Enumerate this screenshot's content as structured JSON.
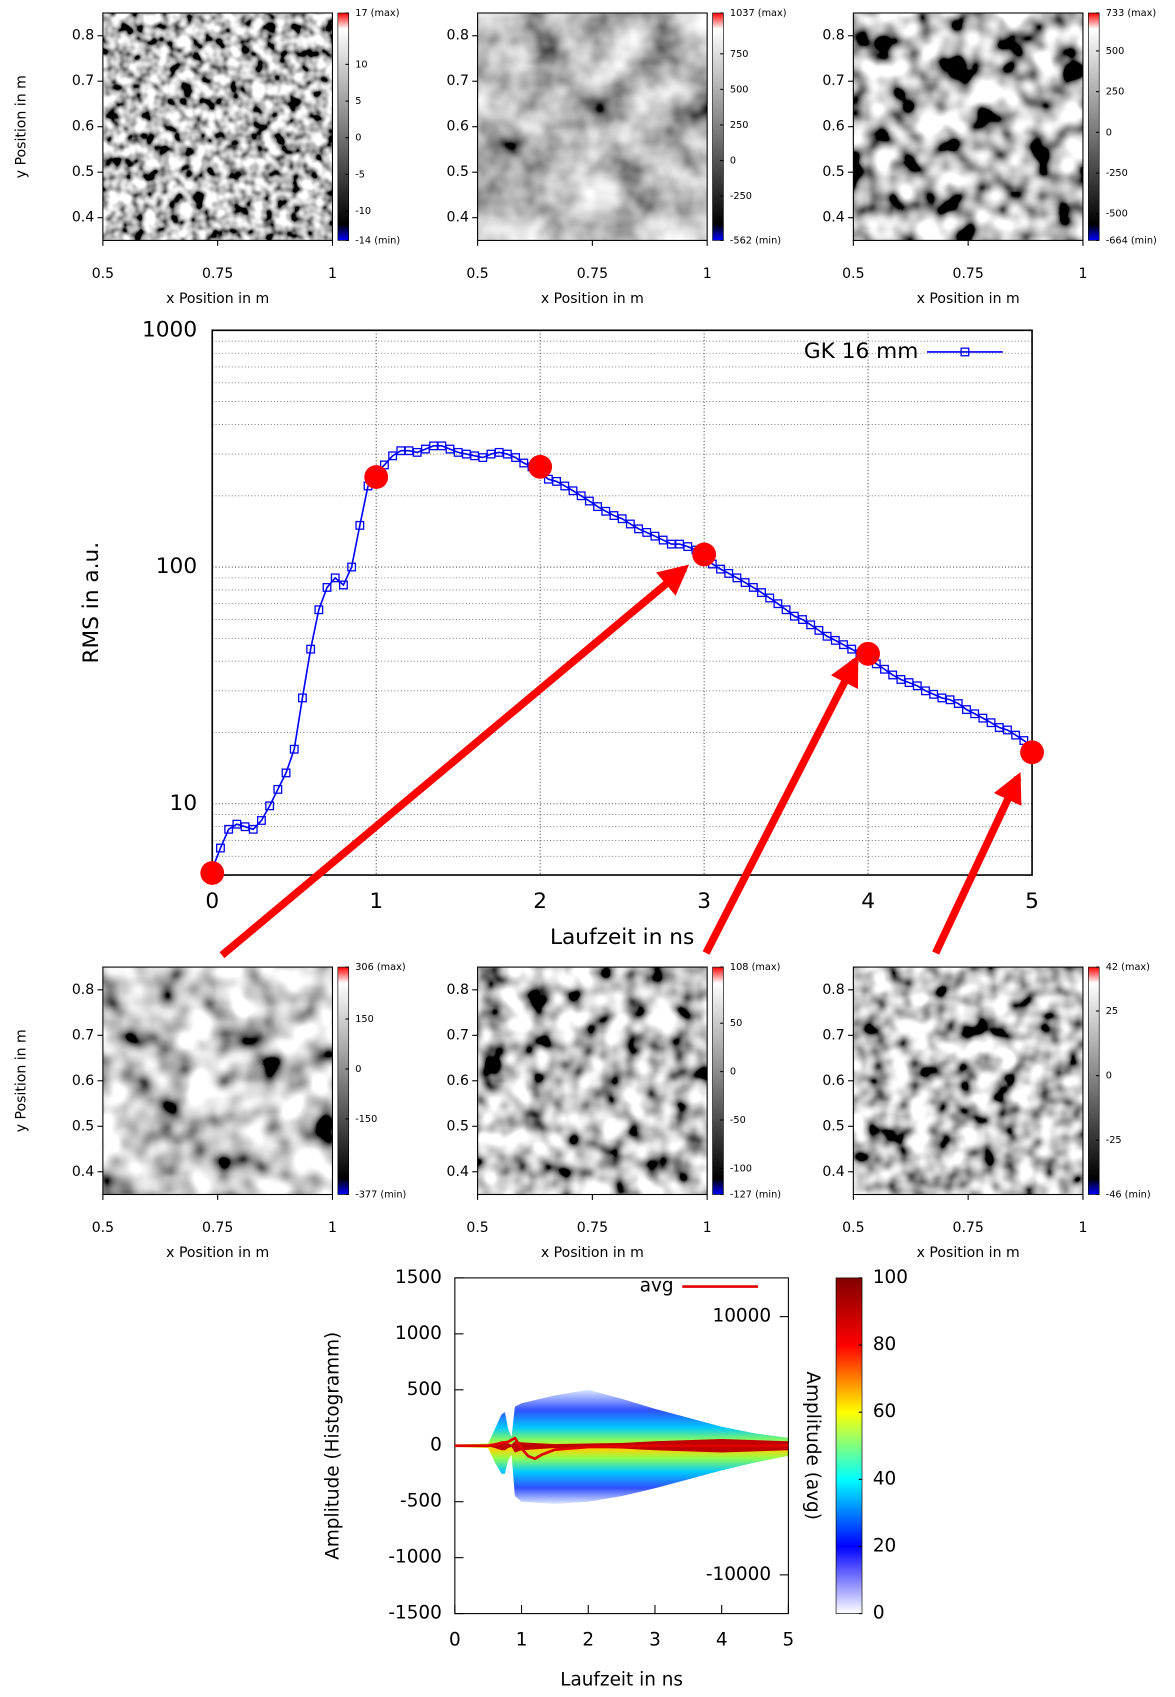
{
  "chart_data": [
    {
      "type": "heatmap",
      "xlabel": "x Position in m",
      "ylabel": "y Position in m",
      "xlim": [
        0.5,
        1
      ],
      "ylim": [
        0.35,
        0.85
      ],
      "xticks": [
        0.5,
        0.75,
        1
      ],
      "yticks": [
        0.4,
        0.5,
        0.6,
        0.7,
        0.8
      ],
      "colormap": [
        "#0000ff",
        "#000000",
        "#ffffff",
        "#ff0000"
      ],
      "zlim": [
        -14,
        17
      ],
      "zticks": [
        {
          "value": -14,
          "label": "-14 (min)"
        },
        -10,
        -5,
        0,
        5,
        10,
        {
          "value": 17,
          "label": "17 (max)"
        }
      ]
    },
    {
      "type": "heatmap",
      "xlabel": "x Position in m",
      "xlim": [
        0.5,
        1
      ],
      "ylim": [
        0.35,
        0.85
      ],
      "xticks": [
        0.5,
        0.75,
        1
      ],
      "yticks": [
        0.4,
        0.5,
        0.6,
        0.7,
        0.8
      ],
      "colormap": [
        "#0000ff",
        "#000000",
        "#ffffff",
        "#ff0000"
      ],
      "zlim": [
        -562,
        1037
      ],
      "zticks": [
        {
          "value": -562,
          "label": "-562 (min)"
        },
        -250,
        0,
        250,
        500,
        750,
        {
          "value": 1037,
          "label": "1037 (max)"
        }
      ]
    },
    {
      "type": "heatmap",
      "xlabel": "x Position in m",
      "xlim": [
        0.5,
        1
      ],
      "ylim": [
        0.35,
        0.85
      ],
      "xticks": [
        0.5,
        0.75,
        1
      ],
      "yticks": [
        0.4,
        0.5,
        0.6,
        0.7,
        0.8
      ],
      "colormap": [
        "#0000ff",
        "#000000",
        "#ffffff",
        "#ff0000"
      ],
      "zlim": [
        -664,
        733
      ],
      "zticks": [
        {
          "value": -664,
          "label": "-664 (min)"
        },
        -500,
        -250,
        0,
        250,
        500,
        {
          "value": 733,
          "label": "733 (max)"
        }
      ]
    },
    {
      "type": "line",
      "xlabel": "Laufzeit in ns",
      "ylabel": "RMS in a.u.",
      "xlim": [
        0,
        5
      ],
      "ylim": [
        5,
        1000
      ],
      "log_y": true,
      "grid": true,
      "legend": "top-right",
      "xticks": [
        0,
        1,
        2,
        3,
        4,
        5
      ],
      "yticks": [
        10,
        100,
        1000
      ],
      "yminorticks": [
        6,
        7,
        8,
        9,
        20,
        30,
        40,
        50,
        60,
        70,
        80,
        90,
        200,
        300,
        400,
        500,
        600,
        700,
        800,
        900
      ],
      "x": [
        0,
        0.05,
        0.1,
        0.15,
        0.2,
        0.25,
        0.3,
        0.35,
        0.4,
        0.45,
        0.5,
        0.55,
        0.6,
        0.65,
        0.7,
        0.75,
        0.8,
        0.85,
        0.9,
        0.95,
        1.0,
        1.05,
        1.1,
        1.15,
        1.2,
        1.25,
        1.3,
        1.35,
        1.4,
        1.45,
        1.5,
        1.55,
        1.6,
        1.65,
        1.7,
        1.75,
        1.8,
        1.85,
        1.9,
        1.95,
        2.0,
        2.05,
        2.1,
        2.15,
        2.2,
        2.25,
        2.3,
        2.35,
        2.4,
        2.45,
        2.5,
        2.55,
        2.6,
        2.65,
        2.7,
        2.75,
        2.8,
        2.85,
        2.9,
        2.95,
        3.0,
        3.05,
        3.1,
        3.15,
        3.2,
        3.25,
        3.3,
        3.35,
        3.4,
        3.45,
        3.5,
        3.55,
        3.6,
        3.65,
        3.7,
        3.75,
        3.8,
        3.85,
        3.9,
        3.95,
        4.0,
        4.05,
        4.1,
        4.15,
        4.2,
        4.25,
        4.3,
        4.35,
        4.4,
        4.45,
        4.5,
        4.55,
        4.6,
        4.65,
        4.7,
        4.75,
        4.8,
        4.85,
        4.9,
        4.95,
        5.0
      ],
      "series": [
        {
          "name": "GK 16 mm",
          "color": "#0000ff",
          "values": [
            5.3,
            6.5,
            7.8,
            8.2,
            8.0,
            7.8,
            8.5,
            9.8,
            11.5,
            13.5,
            17,
            28,
            45,
            66,
            82,
            90,
            84,
            100,
            150,
            220,
            250,
            270,
            295,
            310,
            310,
            305,
            315,
            325,
            325,
            315,
            305,
            300,
            295,
            290,
            300,
            305,
            300,
            290,
            275,
            265,
            250,
            235,
            230,
            220,
            210,
            200,
            190,
            180,
            172,
            165,
            160,
            152,
            145,
            140,
            135,
            130,
            125,
            125,
            122,
            118,
            110,
            103,
            98,
            94,
            90,
            86,
            82,
            78,
            74,
            70,
            66,
            62,
            60,
            57,
            54,
            51,
            49,
            47,
            45,
            43,
            41,
            39,
            37,
            35,
            33.5,
            32.5,
            31.5,
            30,
            29,
            28,
            27.5,
            26.5,
            25,
            24,
            23,
            22,
            21,
            20.5,
            19.5,
            18.5,
            17.5
          ]
        }
      ],
      "highlights": {
        "color": "#ff0000",
        "x": [
          0,
          1,
          2,
          3,
          4,
          5
        ],
        "values": [
          5.1,
          240,
          265,
          113,
          43,
          16.5
        ]
      }
    },
    {
      "type": "heatmap",
      "xlabel": "x Position in m",
      "ylabel": "y Position in m",
      "xlim": [
        0.5,
        1
      ],
      "ylim": [
        0.35,
        0.85
      ],
      "xticks": [
        0.5,
        0.75,
        1
      ],
      "yticks": [
        0.4,
        0.5,
        0.6,
        0.7,
        0.8
      ],
      "colormap": [
        "#0000ff",
        "#000000",
        "#ffffff",
        "#ff0000"
      ],
      "zlim": [
        -377,
        306
      ],
      "zticks": [
        {
          "value": -377,
          "label": "-377 (min)"
        },
        -150,
        0,
        150,
        {
          "value": 306,
          "label": "306 (max)"
        }
      ]
    },
    {
      "type": "heatmap",
      "xlabel": "x Position in m",
      "xlim": [
        0.5,
        1
      ],
      "ylim": [
        0.35,
        0.85
      ],
      "xticks": [
        0.5,
        0.75,
        1
      ],
      "yticks": [
        0.4,
        0.5,
        0.6,
        0.7,
        0.8
      ],
      "colormap": [
        "#0000ff",
        "#000000",
        "#ffffff",
        "#ff0000"
      ],
      "zlim": [
        -127,
        108
      ],
      "zticks": [
        {
          "value": -127,
          "label": "-127 (min)"
        },
        -100,
        -50,
        0,
        50,
        {
          "value": 108,
          "label": "108 (max)"
        }
      ]
    },
    {
      "type": "heatmap",
      "xlabel": "x Position in m",
      "xlim": [
        0.5,
        1
      ],
      "ylim": [
        0.35,
        0.85
      ],
      "xticks": [
        0.5,
        0.75,
        1
      ],
      "yticks": [
        0.4,
        0.5,
        0.6,
        0.7,
        0.8
      ],
      "colormap": [
        "#0000ff",
        "#000000",
        "#ffffff",
        "#ff0000"
      ],
      "zlim": [
        -46,
        42
      ],
      "zticks": [
        {
          "value": -46,
          "label": "-46 (min)"
        },
        -25,
        0,
        25,
        {
          "value": 42,
          "label": "42 (max)"
        }
      ]
    },
    {
      "type": "density",
      "xlabel": "Laufzeit in ns",
      "ylabel": "Amplitude (Histogramm)",
      "y2label": "Amplitude (avg)",
      "legend": "top-right",
      "xlim": [
        0,
        5
      ],
      "ylim": [
        -1500,
        1500
      ],
      "xticks": [
        0,
        1,
        2,
        3,
        4,
        5
      ],
      "yticks": [
        -1500,
        -1000,
        -500,
        0,
        500,
        1000,
        1500
      ],
      "y2lim": [
        -13000,
        13000
      ],
      "y2ticks": [
        -10000,
        10000
      ],
      "colormap": [
        "#ffffff",
        "#0000ff",
        "#00ffff",
        "#ffff00",
        "#ff0000",
        "#800000"
      ],
      "zlim": [
        0,
        100
      ],
      "zticks": [
        0,
        20,
        40,
        60,
        80,
        100
      ],
      "density": {
        "x": [
          0,
          0.5,
          0.6,
          0.7,
          0.75,
          0.8,
          0.85,
          0.9,
          1.0,
          1.5,
          2,
          2.5,
          3,
          3.5,
          4,
          4.5,
          5
        ],
        "outer_upper": [
          10,
          20,
          150,
          280,
          300,
          150,
          80,
          350,
          380,
          450,
          500,
          420,
          330,
          250,
          170,
          110,
          70
        ],
        "outer_lower": [
          -10,
          -20,
          -150,
          -250,
          -250,
          -130,
          -80,
          -450,
          -500,
          -520,
          -500,
          -450,
          -380,
          -300,
          -220,
          -150,
          -90
        ],
        "core_upper": [
          3,
          5,
          20,
          40,
          40,
          20,
          10,
          40,
          30,
          15,
          20,
          25,
          40,
          50,
          60,
          50,
          40
        ],
        "core_lower": [
          -3,
          -5,
          -20,
          -40,
          -40,
          -20,
          -10,
          -60,
          -40,
          -20,
          -20,
          -25,
          -40,
          -50,
          -60,
          -50,
          -40
        ]
      },
      "series": [
        {
          "name": "avg",
          "color": "#e00000",
          "axis": "y2",
          "x": [
            0,
            0.5,
            0.8,
            0.9,
            1.0,
            1.1,
            1.2,
            1.3,
            1.5,
            2,
            3,
            4,
            5
          ],
          "values": [
            0,
            0,
            300,
            600,
            -200,
            -800,
            -1000,
            -700,
            -300,
            -100,
            0,
            0,
            0
          ]
        }
      ]
    }
  ]
}
